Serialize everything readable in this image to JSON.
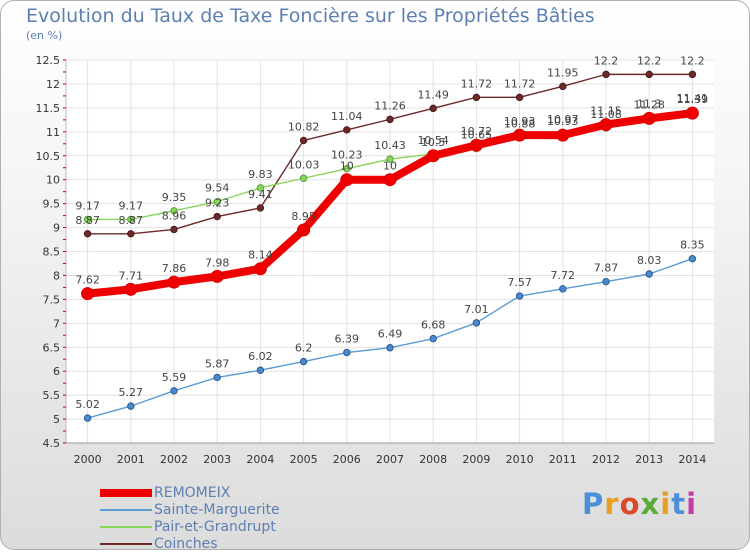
{
  "title": "Evolution du Taux de Taxe Foncière sur les Propriétés Bâties",
  "unit_label": "(en %)",
  "chart_data": {
    "type": "line",
    "x": [
      2000,
      2001,
      2002,
      2003,
      2004,
      2005,
      2006,
      2007,
      2008,
      2009,
      2010,
      2011,
      2012,
      2013,
      2014
    ],
    "ylim": [
      4.5,
      12.5
    ],
    "yticks": [
      4.5,
      5,
      5.5,
      6,
      6.5,
      7,
      7.5,
      8,
      8.5,
      9,
      9.5,
      10,
      10.5,
      11,
      11.5,
      12,
      12.5
    ],
    "grid": true,
    "legend_position": "bottom-left",
    "series": [
      {
        "name": "REMOMEIX",
        "color": "#ee0000",
        "values": [
          7.62,
          7.71,
          7.86,
          7.98,
          8.14,
          8.95,
          10,
          10,
          10.5,
          10.72,
          10.93,
          10.93,
          11.15,
          11.28,
          11.39
        ],
        "labels": [
          "7.62",
          "7.71",
          "7.86",
          "7.98",
          "8.14",
          "8.95",
          "10",
          "10",
          "10.5",
          "10.72",
          "10.93",
          "10.93",
          "11.15",
          "11.28",
          "11.39"
        ]
      },
      {
        "name": "Sainte-Marguerite",
        "color": "#5b9bd5",
        "values": [
          5.02,
          5.27,
          5.59,
          5.87,
          6.02,
          6.2,
          6.39,
          6.49,
          6.68,
          7.01,
          7.57,
          7.72,
          7.87,
          8.03,
          8.35
        ],
        "labels": [
          "5.02",
          "5.27",
          "5.59",
          "5.87",
          "6.02",
          "6.2",
          "6.39",
          "6.49",
          "6.68",
          "7.01",
          "7.57",
          "7.72",
          "7.87",
          "8.03",
          "8.35"
        ]
      },
      {
        "name": "Pair-et-Grandrupt",
        "color": "#88d65a",
        "values": [
          9.17,
          9.17,
          9.35,
          9.54,
          9.83,
          10.03,
          10.23,
          10.43,
          10.54,
          10.65,
          10.88,
          10.97,
          11.08,
          11.3,
          11.41
        ],
        "labels": [
          "9.17",
          "9.17",
          "9.35",
          "9.54",
          "9.83",
          "10.03",
          "10.23",
          "10.43",
          "10.54",
          "10.65",
          "10.88",
          "10.97",
          "11.08",
          "11.3",
          "11.41"
        ]
      },
      {
        "name": "Coinches",
        "color": "#6e2a2a",
        "values": [
          8.87,
          8.87,
          8.96,
          9.23,
          9.41,
          10.82,
          11.04,
          11.26,
          11.49,
          11.72,
          11.72,
          11.95,
          12.2,
          12.2,
          12.2
        ],
        "labels": [
          "8.87",
          "8.87",
          "8.96",
          "9.23",
          "9.41",
          "10.82",
          "11.04",
          "11.26",
          "11.49",
          "11.72",
          "11.72",
          "11.95",
          "12.2",
          "12.2",
          "12.2"
        ]
      }
    ]
  },
  "logo": {
    "letters": [
      "P",
      "r",
      "o",
      "x",
      "i",
      "t",
      "i"
    ],
    "colors": [
      "#4a8fd8",
      "#e8a020",
      "#d84a2a",
      "#5aaa3a",
      "#e8a020",
      "#4a8fd8",
      "#c83aa8"
    ]
  }
}
